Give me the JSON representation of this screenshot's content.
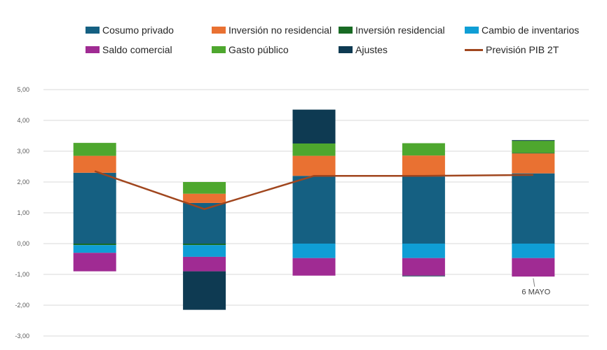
{
  "chart_data": {
    "type": "bar",
    "stacked": true,
    "categories": [
      "",
      "",
      "",
      "",
      ""
    ],
    "ylim": [
      -3,
      5
    ],
    "yticks": [
      "5,00",
      "4,00",
      "3,00",
      "2,00",
      "1,00",
      "0,00",
      "-1,00",
      "-2,00",
      "-3,00"
    ],
    "grid": true,
    "legend_position": "top",
    "series": [
      {
        "name": "Cosumo privado",
        "color": "#156082",
        "values": [
          2.3,
          1.32,
          2.2,
          2.18,
          2.28
        ]
      },
      {
        "name": "Inversión no residencial",
        "color": "#E97132",
        "values": [
          0.55,
          0.3,
          0.65,
          0.68,
          0.65
        ]
      },
      {
        "name": "Inversión residencial",
        "color": "#196B24",
        "values": [
          -0.05,
          -0.05,
          0.0,
          0.0,
          0.02
        ]
      },
      {
        "name": "Cambio de inventarios",
        "color": "#0F9ED5",
        "values": [
          -0.25,
          -0.38,
          -0.47,
          -0.47,
          -0.47
        ]
      },
      {
        "name": "Saldo comercial",
        "color": "#A02B93",
        "values": [
          -0.6,
          -0.47,
          -0.57,
          -0.57,
          -0.6
        ]
      },
      {
        "name": "Gasto público",
        "color": "#4EA72E",
        "values": [
          0.42,
          0.38,
          0.4,
          0.4,
          0.4
        ]
      },
      {
        "name": "Ajustes",
        "color": "#0E3A52",
        "values": [
          0.0,
          -1.25,
          1.1,
          -0.02,
          0.01
        ]
      }
    ],
    "line_series": {
      "name": "Previsión PIB 2T",
      "color": "#A0461E",
      "values": [
        2.35,
        1.12,
        2.2,
        2.2,
        2.23
      ]
    },
    "annotations": [
      {
        "text": "6 MAYO",
        "category_index": 4
      }
    ]
  }
}
